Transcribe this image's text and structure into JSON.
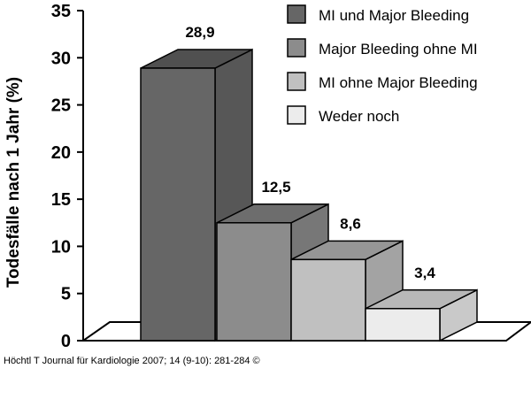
{
  "chart_data": {
    "type": "bar",
    "style": "3d",
    "ylabel": "Todesfälle nach 1 Jahr (%)",
    "xlabel": "",
    "ylim": [
      0,
      35
    ],
    "yticks": [
      0,
      5,
      10,
      15,
      20,
      25,
      30,
      35
    ],
    "grid": false,
    "legend_position": "top-right",
    "series": [
      {
        "name": "MI und Major Bleeding",
        "value": 28.9,
        "label": "28,9",
        "color": "#666666"
      },
      {
        "name": "Major Bleeding ohne MI",
        "value": 12.5,
        "label": "12,5",
        "color": "#8c8c8c"
      },
      {
        "name": "MI ohne Major Bleeding",
        "value": 8.6,
        "label": "8,6",
        "color": "#c0c0c0"
      },
      {
        "name": "Weder noch",
        "value": 3.4,
        "label": "3,4",
        "color": "#ececec"
      }
    ]
  },
  "source": "Höchtl T Journal für Kardiologie 2007; 14 (9-10): 281-284 ©"
}
